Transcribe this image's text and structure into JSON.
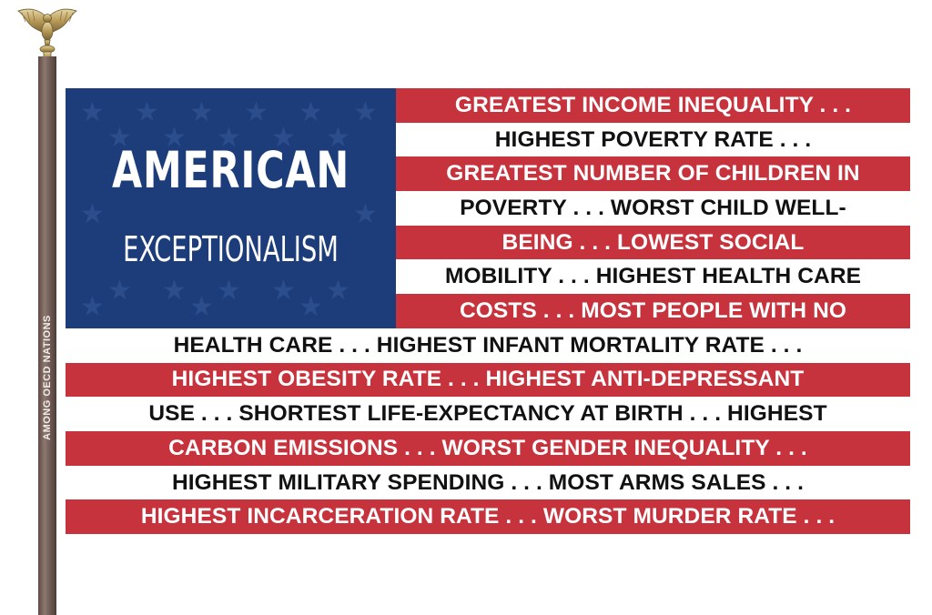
{
  "pole": {
    "caption": "AMONG OECD NATIONS"
  },
  "canton": {
    "title": "AMERICAN",
    "subtitle": "EXCEPTIONALISM"
  },
  "stripes": [
    "GREATEST INCOME INEQUALITY . . .",
    "HIGHEST POVERTY RATE . . .",
    "GREATEST NUMBER OF CHILDREN IN",
    "POVERTY  . . .  WORST CHILD WELL-",
    "BEING . . . LOWEST SOCIAL",
    "MOBILITY . . . HIGHEST HEALTH CARE",
    "COSTS . . . MOST PEOPLE WITH NO",
    "HEALTH CARE . . . HIGHEST INFANT MORTALITY RATE . . .",
    "HIGHEST OBESITY RATE . . . HIGHEST ANTI-DEPRESSANT",
    "USE . . . SHORTEST LIFE-EXPECTANCY AT BIRTH . . . HIGHEST",
    "CARBON EMISSIONS . . . WORST GENDER INEQUALITY . . .",
    "HIGHEST MILITARY SPENDING . . . MOST ARMS SALES . . .",
    "HIGHEST INCARCERATION RATE . . . WORST MURDER RATE . . ."
  ],
  "colors": {
    "red": "#c7333d",
    "white": "#ffffff",
    "blue": "#1c3d7a",
    "pole": "#6a5650"
  },
  "icons": {
    "finial": "eagle-icon",
    "stars": "star-icon"
  }
}
